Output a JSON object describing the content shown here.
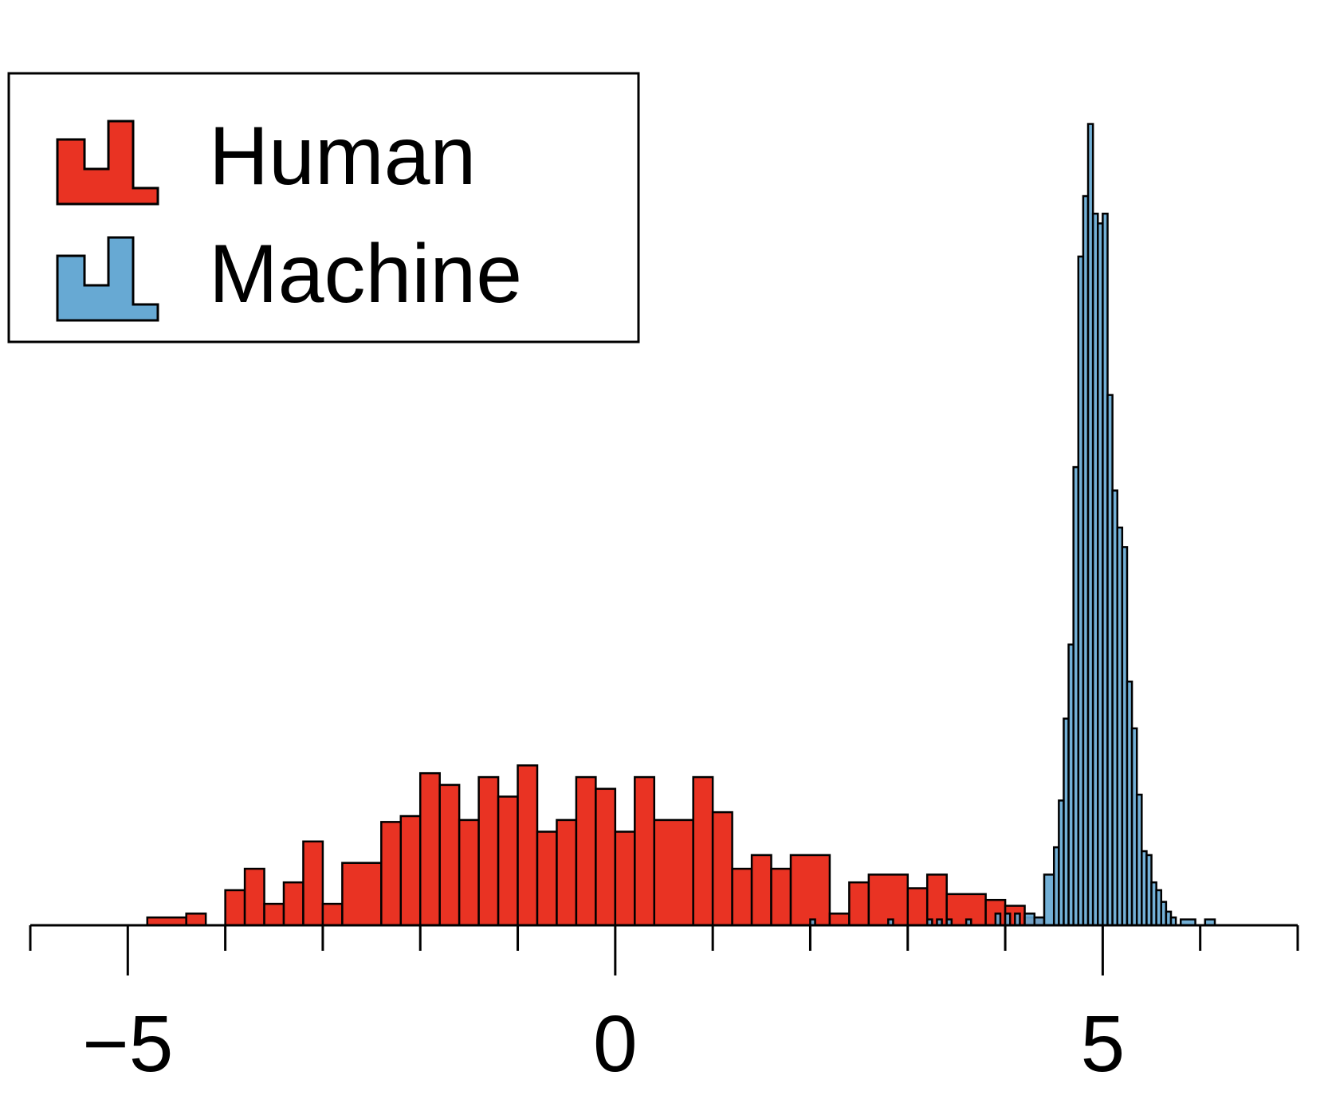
{
  "chart_data": {
    "type": "histogram",
    "title": "",
    "xlabel": "",
    "ylabel": "",
    "xlim": [
      -6,
      7
    ],
    "ylim": [
      0,
      41
    ],
    "bin_width": 0.2,
    "grid": false,
    "legend_position": "top-left",
    "x_ticks": [
      -6,
      -5,
      -4,
      -3,
      -2,
      -1,
      0,
      1,
      2,
      3,
      4,
      5,
      6,
      7
    ],
    "x_tick_labels": [
      {
        "value": -5,
        "label": "−5"
      },
      {
        "value": 0,
        "label": "0"
      },
      {
        "value": 5,
        "label": "5"
      }
    ],
    "series": [
      {
        "name": "Human",
        "color": "#e93323",
        "bins": [
          [
            -4.8,
            -4.4,
            0.4
          ],
          [
            -4.4,
            -4.2,
            0.6
          ],
          [
            -4.0,
            -3.8,
            1.8
          ],
          [
            -3.8,
            -3.6,
            2.9
          ],
          [
            -3.6,
            -3.4,
            1.1
          ],
          [
            -3.4,
            -3.2,
            2.2
          ],
          [
            -3.2,
            -3.0,
            4.3
          ],
          [
            -3.0,
            -2.8,
            1.1
          ],
          [
            -2.8,
            -2.4,
            3.2
          ],
          [
            -2.4,
            -2.2,
            5.3
          ],
          [
            -2.2,
            -2.0,
            5.6
          ],
          [
            -2.0,
            -1.8,
            7.8
          ],
          [
            -1.8,
            -1.6,
            7.2
          ],
          [
            -1.6,
            -1.4,
            5.4
          ],
          [
            -1.4,
            -1.2,
            7.6
          ],
          [
            -1.2,
            -1.0,
            6.6
          ],
          [
            -1.0,
            -0.8,
            8.2
          ],
          [
            -0.8,
            -0.6,
            4.8
          ],
          [
            -0.6,
            -0.4,
            5.4
          ],
          [
            -0.4,
            -0.2,
            7.6
          ],
          [
            -0.2,
            0.0,
            7.0
          ],
          [
            0.0,
            0.2,
            4.8
          ],
          [
            0.2,
            0.4,
            7.6
          ],
          [
            0.4,
            0.8,
            5.4
          ],
          [
            0.8,
            1.0,
            7.6
          ],
          [
            1.0,
            1.2,
            5.8
          ],
          [
            1.2,
            1.4,
            2.9
          ],
          [
            1.4,
            1.6,
            3.6
          ],
          [
            1.6,
            1.8,
            2.9
          ],
          [
            1.8,
            2.2,
            3.6
          ],
          [
            2.2,
            2.4,
            0.6
          ],
          [
            2.4,
            2.6,
            2.2
          ],
          [
            2.6,
            3.0,
            2.6
          ],
          [
            3.0,
            3.2,
            1.9
          ],
          [
            3.2,
            3.4,
            2.6
          ],
          [
            3.4,
            3.8,
            1.6
          ],
          [
            3.8,
            4.0,
            1.3
          ],
          [
            4.0,
            4.2,
            1.0
          ],
          [
            4.2,
            4.4,
            0.4
          ]
        ]
      },
      {
        "name": "Machine",
        "color": "#67a9d3",
        "bins": [
          [
            2.0,
            2.05,
            0.3
          ],
          [
            2.8,
            2.85,
            0.3
          ],
          [
            3.2,
            3.25,
            0.3
          ],
          [
            3.3,
            3.35,
            0.3
          ],
          [
            3.4,
            3.45,
            0.3
          ],
          [
            3.6,
            3.65,
            0.3
          ],
          [
            3.9,
            3.95,
            0.6
          ],
          [
            4.0,
            4.05,
            0.6
          ],
          [
            4.1,
            4.15,
            0.6
          ],
          [
            4.2,
            4.3,
            0.6
          ],
          [
            4.3,
            4.4,
            0.4
          ],
          [
            4.4,
            4.5,
            2.6
          ],
          [
            4.5,
            4.55,
            4.0
          ],
          [
            4.55,
            4.6,
            6.4
          ],
          [
            4.6,
            4.65,
            10.6
          ],
          [
            4.65,
            4.7,
            14.4
          ],
          [
            4.7,
            4.75,
            23.5
          ],
          [
            4.75,
            4.8,
            34.3
          ],
          [
            4.8,
            4.85,
            37.4
          ],
          [
            4.85,
            4.9,
            41.1
          ],
          [
            4.9,
            4.95,
            36.5
          ],
          [
            4.95,
            5.0,
            36.0
          ],
          [
            5.0,
            5.05,
            36.5
          ],
          [
            5.05,
            5.1,
            27.2
          ],
          [
            5.1,
            5.15,
            22.3
          ],
          [
            5.15,
            5.2,
            20.4
          ],
          [
            5.2,
            5.25,
            19.4
          ],
          [
            5.25,
            5.3,
            12.5
          ],
          [
            5.3,
            5.35,
            10.1
          ],
          [
            5.35,
            5.4,
            6.7
          ],
          [
            5.4,
            5.45,
            3.8
          ],
          [
            5.45,
            5.5,
            3.6
          ],
          [
            5.5,
            5.55,
            2.2
          ],
          [
            5.55,
            5.6,
            1.8
          ],
          [
            5.6,
            5.65,
            1.2
          ],
          [
            5.65,
            5.7,
            0.7
          ],
          [
            5.7,
            5.75,
            0.4
          ],
          [
            5.8,
            5.95,
            0.3
          ],
          [
            6.05,
            6.15,
            0.3
          ]
        ]
      }
    ]
  }
}
